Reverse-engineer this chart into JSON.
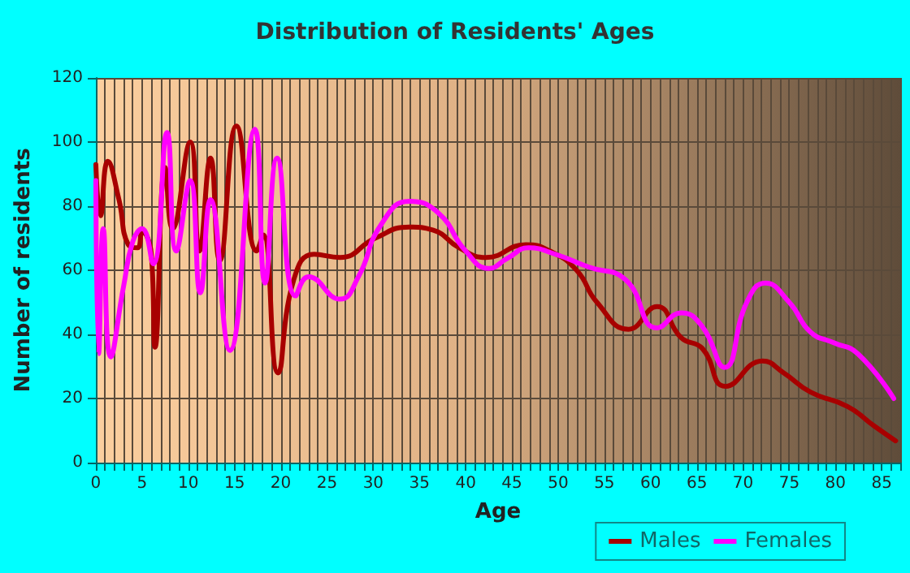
{
  "chart_data": {
    "type": "line",
    "title": "Distribution of Residents' Ages",
    "xlabel": "Age",
    "ylabel": "Number of residents",
    "xlim": [
      0,
      87
    ],
    "xticks": [
      0,
      5,
      10,
      15,
      20,
      25,
      30,
      35,
      40,
      45,
      50,
      55,
      60,
      65,
      70,
      75,
      80,
      85
    ],
    "ylim": [
      0,
      120
    ],
    "yticks": [
      0,
      20,
      40,
      60,
      80,
      100,
      120
    ],
    "grid": true,
    "legend": "bottom right",
    "marker": "none",
    "line_style": "solid",
    "series": [
      {
        "name": "Males",
        "color": "#a80000",
        "x": [
          0,
          0.5,
          1.3,
          2.5,
          3.5,
          4.5,
          5,
          6,
          6.4,
          7.5,
          8.3,
          10.2,
          11.2,
          12.4,
          13.4,
          15.2,
          17.4,
          18.1,
          19.7,
          21.4,
          23.6,
          26.4,
          30.2,
          33.9,
          36.5,
          39.3,
          42.2,
          46.5,
          49.1,
          52,
          54.2,
          57.6,
          60.7,
          63.3,
          65.6,
          68.1,
          72.1,
          74.4,
          77.3,
          81.3,
          84.2,
          86.5
        ],
        "values": [
          93,
          77,
          94,
          82,
          68,
          67,
          72,
          65,
          36,
          92,
          73,
          100,
          66,
          95,
          63,
          105,
          66,
          71,
          28,
          57,
          65,
          64,
          70,
          73.5,
          72.5,
          67,
          64,
          68,
          66,
          60,
          50,
          41.6,
          48.7,
          39,
          35.6,
          23.8,
          31.7,
          28,
          22,
          17.5,
          11.4,
          6.8
        ]
      },
      {
        "name": "Females",
        "color": "#ff00ff",
        "x": [
          0,
          0.3,
          0.8,
          1.6,
          3,
          4,
          5,
          6.2,
          7.7,
          8.7,
          10.2,
          11.3,
          12.4,
          14.5,
          17.2,
          18.3,
          19.6,
          21.6,
          23,
          26.4,
          28.4,
          30.8,
          33.9,
          37,
          40,
          42.5,
          44.5,
          46.8,
          49.7,
          53.3,
          57.3,
          60.7,
          63.3,
          65.6,
          68,
          70.4,
          72.4,
          75,
          77.3,
          79.8,
          82.4,
          86.3
        ],
        "values": [
          88,
          34,
          73,
          33,
          55,
          69,
          73,
          62,
          103,
          66,
          88,
          53,
          82,
          35,
          104,
          56,
          95,
          52,
          58,
          51,
          58,
          74,
          81.5,
          78,
          66,
          60.6,
          63.7,
          67,
          65,
          61,
          57,
          42,
          46.7,
          42.4,
          29.7,
          50,
          56,
          50,
          40.7,
          37.4,
          34,
          20
        ]
      }
    ]
  }
}
